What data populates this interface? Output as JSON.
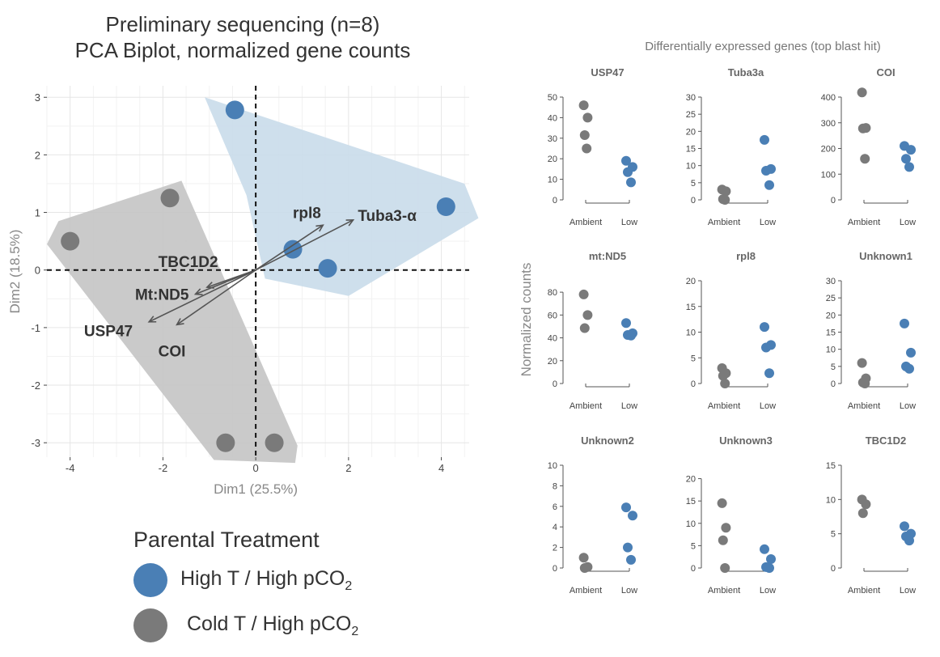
{
  "pca": {
    "title_line1": "Preliminary sequencing (n=8)",
    "title_line2": "PCA Biplot, normalized gene counts",
    "legend": {
      "title": "Parental Treatment",
      "items": [
        {
          "label_main": "High T / High pCO",
          "label_sub": "2",
          "color": "#4a7fb5"
        },
        {
          "label_main": "Cold T / High pCO",
          "label_sub": "2",
          "color": "#7a7a7a"
        }
      ]
    }
  },
  "panels": {
    "title": "Differentially expressed genes (top blast hit)",
    "ylabel": "Normalized counts"
  },
  "chart_data": [
    {
      "type": "scatter",
      "subtype": "pca-biplot",
      "xlabel": "Dim1 (25.5%)",
      "ylabel": "Dim2 (18.5%)",
      "xlim": [
        -4.5,
        4.6
      ],
      "ylim": [
        -3.25,
        3.2
      ],
      "x_ticks": [
        -4,
        -2,
        0,
        2,
        4
      ],
      "y_ticks": [
        -3,
        -2,
        -1,
        0,
        1,
        2,
        3
      ],
      "grid": true,
      "colors": {
        "high": "#4a7fb5",
        "cold": "#7a7a7a",
        "hull_high": "#c9dbea",
        "hull_cold": "#c4c4c4"
      },
      "series": [
        {
          "group": "high",
          "points": [
            [
              -0.45,
              2.78
            ],
            [
              0.8,
              0.36
            ],
            [
              1.55,
              0.03
            ],
            [
              4.1,
              1.1
            ]
          ],
          "hull": [
            [
              -1.1,
              3.0
            ],
            [
              4.5,
              1.5
            ],
            [
              4.8,
              0.9
            ],
            [
              2.0,
              -0.45
            ],
            [
              0.2,
              -0.15
            ],
            [
              -0.2,
              1.3
            ]
          ]
        },
        {
          "group": "cold",
          "points": [
            [
              -4.0,
              0.5
            ],
            [
              -1.85,
              1.25
            ],
            [
              -0.65,
              -3.0
            ],
            [
              0.4,
              -3.0
            ]
          ],
          "hull": [
            [
              -4.25,
              0.85
            ],
            [
              -1.6,
              1.55
            ],
            [
              0.9,
              -3.05
            ],
            [
              0.85,
              -3.35
            ],
            [
              -0.9,
              -3.3
            ],
            [
              -4.5,
              0.45
            ]
          ]
        }
      ],
      "loadings": [
        {
          "label": "rpl8",
          "x": 1.45,
          "y": 0.78,
          "lx": 0.8,
          "ly": 1.0
        },
        {
          "label": "Tuba3-α",
          "x": 2.1,
          "y": 0.87,
          "lx": 2.2,
          "ly": 0.95
        },
        {
          "label": "TBC1D2",
          "x": -1.05,
          "y": -0.3,
          "lx": -2.1,
          "ly": 0.15
        },
        {
          "label": "Mt:ND5",
          "x": -1.3,
          "y": -0.42,
          "lx": -2.6,
          "ly": -0.42
        },
        {
          "label": "USP47",
          "x": -2.3,
          "y": -0.9,
          "lx": -3.7,
          "ly": -1.05
        },
        {
          "label": "COI",
          "x": -1.7,
          "y": -0.95,
          "lx": -2.1,
          "ly": -1.4
        }
      ]
    },
    {
      "type": "scatter",
      "subtype": "dot-panels",
      "categories": [
        "Ambient",
        "Low"
      ],
      "panels": [
        {
          "gene": "USP47",
          "ylim": [
            0,
            50
          ],
          "ticks": [
            0,
            10,
            20,
            30,
            40,
            50
          ],
          "ambient": [
            46,
            40,
            31.5,
            25
          ],
          "low": [
            19,
            16,
            13.5,
            8.5
          ]
        },
        {
          "gene": "Tuba3a",
          "ylim": [
            0,
            30
          ],
          "ticks": [
            0,
            5,
            10,
            15,
            20,
            25,
            30
          ],
          "ambient": [
            3,
            2.5,
            0.2,
            0
          ],
          "low": [
            17.5,
            9,
            8.5,
            4.3
          ]
        },
        {
          "gene": "COI",
          "ylim": [
            0,
            400
          ],
          "ticks": [
            0,
            100,
            200,
            300,
            400
          ],
          "ambient": [
            418,
            280,
            278,
            160
          ],
          "low": [
            210,
            195,
            160,
            128
          ]
        },
        {
          "gene": "mt:ND5",
          "ylim": [
            0,
            90
          ],
          "ticks": [
            0,
            20,
            40,
            60,
            80
          ],
          "ambient": [
            78,
            60,
            48.5
          ],
          "low": [
            53,
            44,
            42.5,
            42
          ]
        },
        {
          "gene": "rpl8",
          "ylim": [
            0,
            20
          ],
          "ticks": [
            0,
            5,
            10,
            15,
            20
          ],
          "ambient": [
            3,
            2,
            1.5,
            0
          ],
          "low": [
            11,
            7.5,
            7,
            2
          ]
        },
        {
          "gene": "Unknown1",
          "ylim": [
            0,
            30
          ],
          "ticks": [
            0,
            5,
            10,
            15,
            20,
            25,
            30
          ],
          "ambient": [
            6,
            1.5,
            0.3,
            0
          ],
          "low": [
            17.5,
            9,
            5,
            4.3
          ]
        },
        {
          "gene": "Unknown2",
          "ylim": [
            0,
            10
          ],
          "ticks": [
            0,
            2,
            4,
            6,
            8,
            10
          ],
          "ambient": [
            1,
            0.1,
            0
          ],
          "low": [
            5.9,
            5.1,
            2,
            0.8
          ]
        },
        {
          "gene": "Unknown3",
          "ylim": [
            0,
            23
          ],
          "ticks": [
            0,
            5,
            10,
            15,
            20
          ],
          "ambient": [
            14.5,
            9,
            6.2,
            0
          ],
          "low": [
            4.2,
            2,
            0.2,
            0
          ]
        },
        {
          "gene": "TBC1D2",
          "ylim": [
            0,
            15
          ],
          "ticks": [
            0,
            5,
            10,
            15
          ],
          "ambient": [
            10,
            9.3,
            8
          ],
          "low": [
            6.1,
            5,
            4.6,
            4
          ]
        }
      ]
    }
  ]
}
